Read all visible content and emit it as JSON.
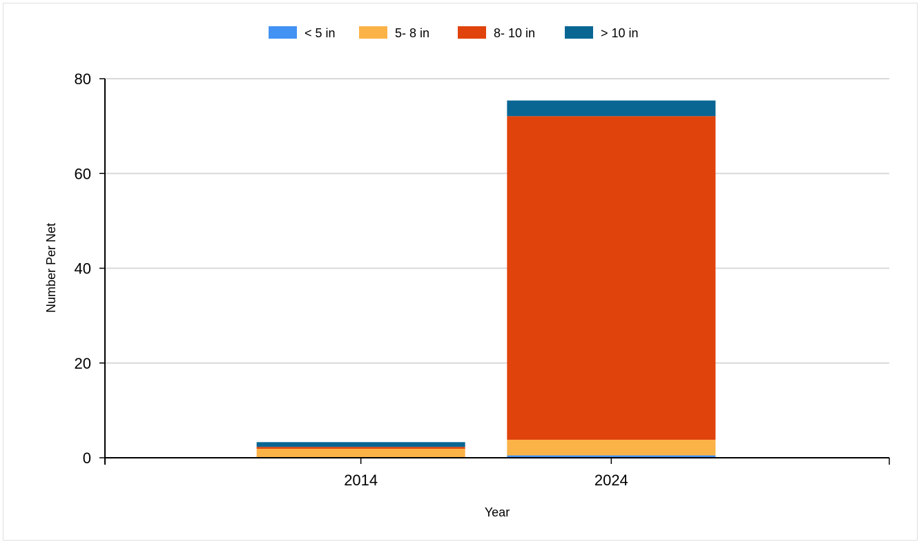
{
  "chart_data": {
    "type": "bar",
    "stacked": true,
    "title": "",
    "xlabel": "Year",
    "ylabel": "Number Per Net",
    "categories": [
      "2014",
      "2024"
    ],
    "ylim": [
      0,
      80
    ],
    "yticks": [
      "0",
      "20",
      "40",
      "60",
      "80"
    ],
    "grid": true,
    "legend_position": "top-center",
    "series": [
      {
        "name": "< 5 in",
        "color": "#4292f3",
        "values": [
          0.1,
          0.5
        ]
      },
      {
        "name": "5- 8 in",
        "color": "#fbb347",
        "values": [
          1.8,
          3.3
        ]
      },
      {
        "name": "8- 10 in",
        "color": "#e0430c",
        "values": [
          0.4,
          68.3
        ]
      },
      {
        "name": "> 10 in",
        "color": "#096693",
        "values": [
          1.0,
          3.3
        ]
      }
    ]
  }
}
